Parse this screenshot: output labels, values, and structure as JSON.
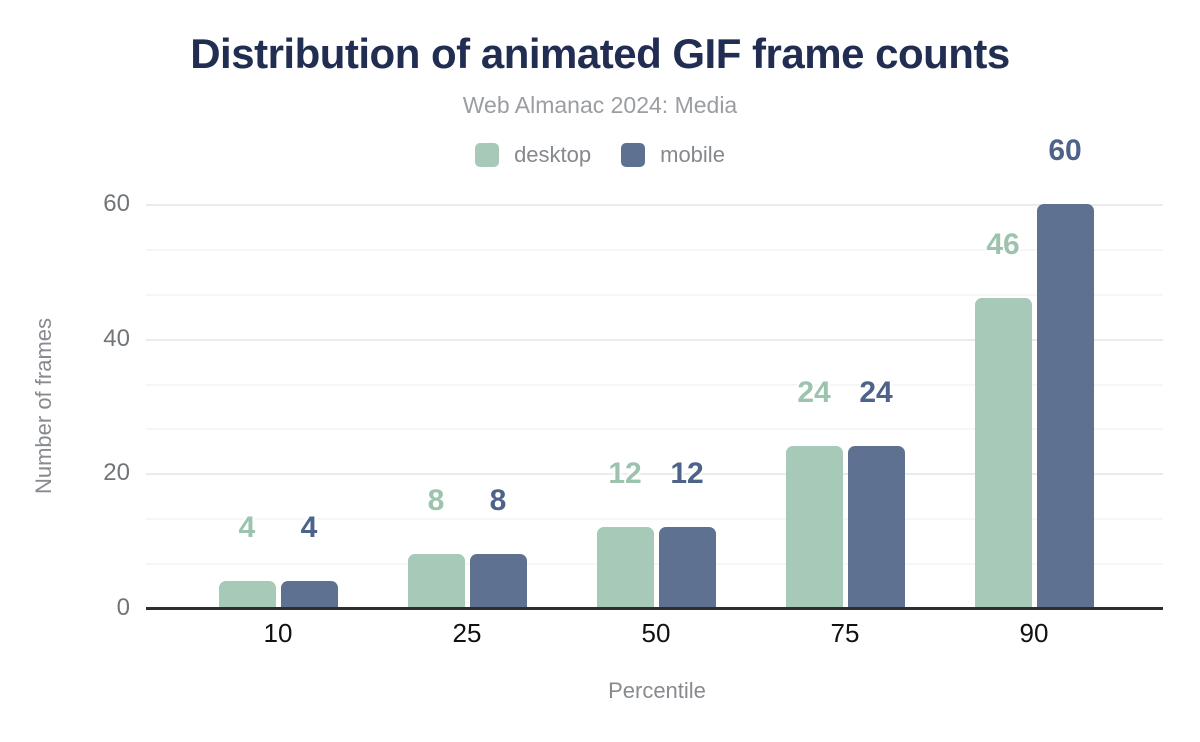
{
  "chart_data": {
    "type": "bar",
    "title": "Distribution of animated GIF frame counts",
    "subtitle": "Web Almanac 2024: Media",
    "xlabel": "Percentile",
    "ylabel": "Number of frames",
    "categories": [
      "10",
      "25",
      "50",
      "75",
      "90"
    ],
    "series": [
      {
        "name": "desktop",
        "color": "#a7c9b7",
        "label_color": "#9cc3ae",
        "values": [
          4,
          8,
          12,
          24,
          46
        ]
      },
      {
        "name": "mobile",
        "color": "#5f7190",
        "label_color": "#4e6389",
        "values": [
          4,
          8,
          12,
          24,
          60
        ]
      }
    ],
    "y_ticks": [
      0,
      20,
      40,
      60
    ],
    "ylim": [
      0,
      60
    ],
    "grid": "horizontal major gridlines at 20/40/60 with minor gridlines at thirds",
    "legend_position": "top-center",
    "annotations": "series values shown bold above each bar in series color",
    "title_color": "#212e52",
    "axis_line_color": "#2e2e2e"
  }
}
